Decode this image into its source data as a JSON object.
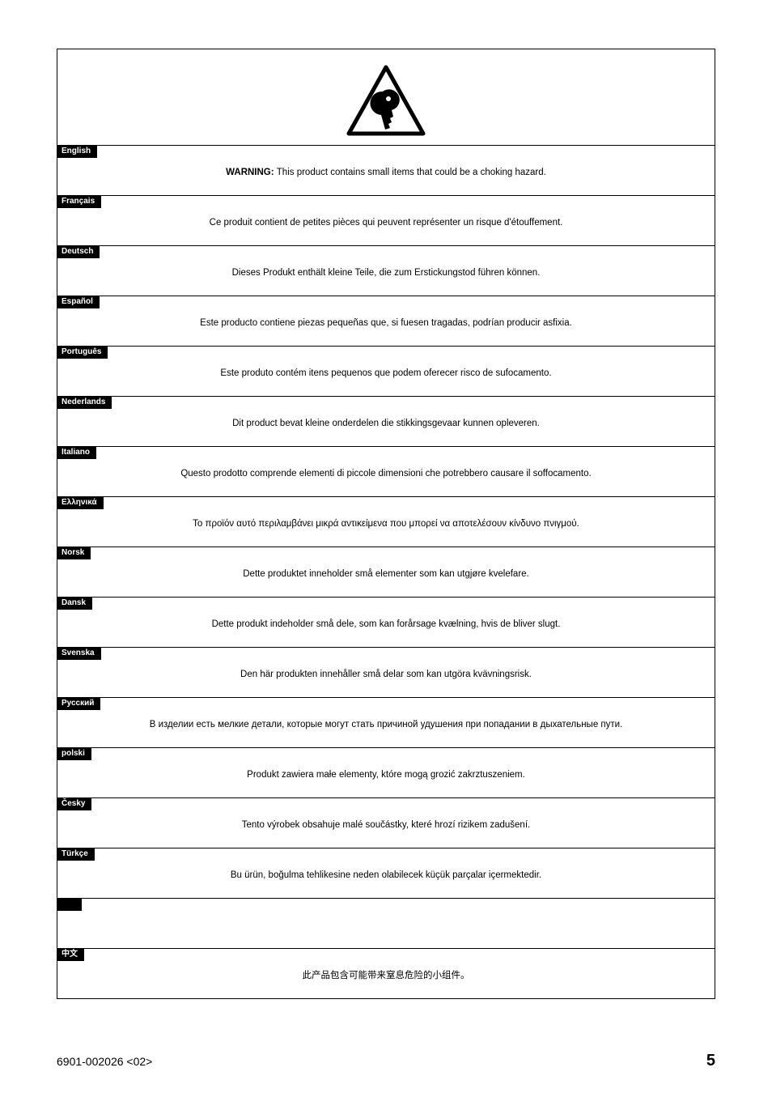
{
  "icon": {
    "triangle_stroke": "#000000",
    "fill": "#ffffff"
  },
  "blocks": [
    {
      "lang": "English",
      "text_prefix": "WARNING: ",
      "text": "This product contains small items that could be a choking hazard."
    },
    {
      "lang": "Français",
      "text": "Ce produit contient de petites pièces qui peuvent représenter un risque d'étouffement."
    },
    {
      "lang": "Deutsch",
      "text": "Dieses Produkt enthält kleine Teile, die zum Erstickungstod führen können."
    },
    {
      "lang": "Español",
      "text": "Este producto contiene piezas pequeñas que, si fuesen tragadas, podrían producir asfixia."
    },
    {
      "lang": "Português",
      "text": "Este produto contém itens pequenos que podem oferecer risco de sufocamento."
    },
    {
      "lang": "Nederlands",
      "text": "Dit product bevat kleine onderdelen die stikkingsgevaar kunnen opleveren."
    },
    {
      "lang": "Italiano",
      "text": "Questo prodotto comprende elementi di piccole dimensioni che potrebbero causare il soffocamento."
    },
    {
      "lang": "Ελληνικά",
      "text": "Το προϊόν αυτό περιλαμβάνει μικρά αντικείμενα που μπορεί να αποτελέσουν κίνδυνο πνιγμού."
    },
    {
      "lang": "Norsk",
      "text": "Dette produktet inneholder små elementer som kan utgjøre kvelefare."
    },
    {
      "lang": "Dansk",
      "text": "Dette produkt indeholder små dele, som kan forårsage kvælning, hvis de bliver slugt."
    },
    {
      "lang": "Svenska",
      "text": "Den här produkten innehåller små delar som kan utgöra kvävningsrisk."
    },
    {
      "lang": "Русский",
      "text": "В изделии есть мелкие детали, которые могут стать причиной удушения при попадании в дыхательные пути."
    },
    {
      "lang": "polski",
      "text": "Produkt zawiera małe elementy, które mogą grozić zakrztuszeniem."
    },
    {
      "lang": "Česky",
      "text": "Tento výrobek obsahuje malé součástky, které hrozí rizikem zadušení."
    },
    {
      "lang": "Türkçe",
      "text": "Bu ürün, boğulma tehlikesine neden olabilecek küçük parçalar içermektedir."
    },
    {
      "lang": "",
      "text": ""
    },
    {
      "lang": "中文",
      "text": "此产品包含可能带来窒息危险的小组件。"
    }
  ],
  "footer": {
    "doc_number": "6901-002026 <02>",
    "page_number": "5"
  }
}
